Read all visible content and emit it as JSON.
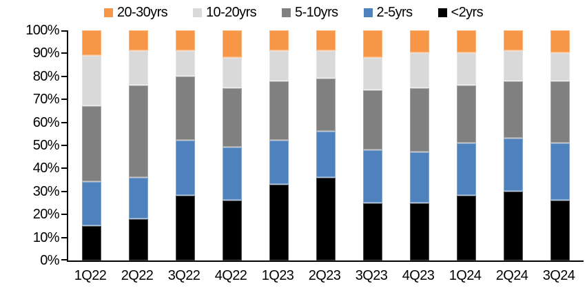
{
  "chart_data": {
    "type": "bar",
    "stacked": true,
    "orientation": "vertical",
    "title": "",
    "xlabel": "",
    "ylabel": "",
    "unit": "%",
    "grid": false,
    "legend_position": "top",
    "legend_order": [
      "20-30yrs",
      "10-20yrs",
      "5-10yrs",
      "2-5yrs",
      "<2yrs"
    ],
    "categories": [
      "1Q22",
      "2Q22",
      "3Q22",
      "4Q22",
      "1Q23",
      "2Q23",
      "3Q23",
      "4Q23",
      "1Q24",
      "2Q24",
      "3Q24"
    ],
    "series": [
      {
        "name": "<2yrs",
        "color": "#000000",
        "values": [
          15,
          18,
          28,
          26,
          33,
          36,
          25,
          25,
          28,
          30,
          26
        ]
      },
      {
        "name": "2-5yrs",
        "color": "#4F81BD",
        "values": [
          19,
          18,
          24,
          23,
          19,
          20,
          23,
          22,
          23,
          23,
          25
        ]
      },
      {
        "name": "5-10yrs",
        "color": "#808080",
        "values": [
          33,
          40,
          28,
          26,
          26,
          23,
          26,
          28,
          25,
          25,
          27
        ]
      },
      {
        "name": "10-20yrs",
        "color": "#D9D9D9",
        "values": [
          22,
          15,
          11,
          13,
          13,
          12,
          14,
          15,
          14,
          13,
          12
        ]
      },
      {
        "name": "20-30yrs",
        "color": "#F79646",
        "values": [
          11,
          9,
          9,
          12,
          9,
          9,
          12,
          10,
          10,
          9,
          10
        ]
      }
    ],
    "y_axis": {
      "min": 0,
      "max": 100,
      "tick_step": 10,
      "tick_labels": [
        "0%",
        "10%",
        "20%",
        "30%",
        "40%",
        "50%",
        "60%",
        "70%",
        "80%",
        "90%",
        "100%"
      ]
    },
    "ylim": [
      0,
      100
    ]
  },
  "colors": {
    "background": "#FFFFFF",
    "axis": "#000000",
    "text": "#000000"
  }
}
